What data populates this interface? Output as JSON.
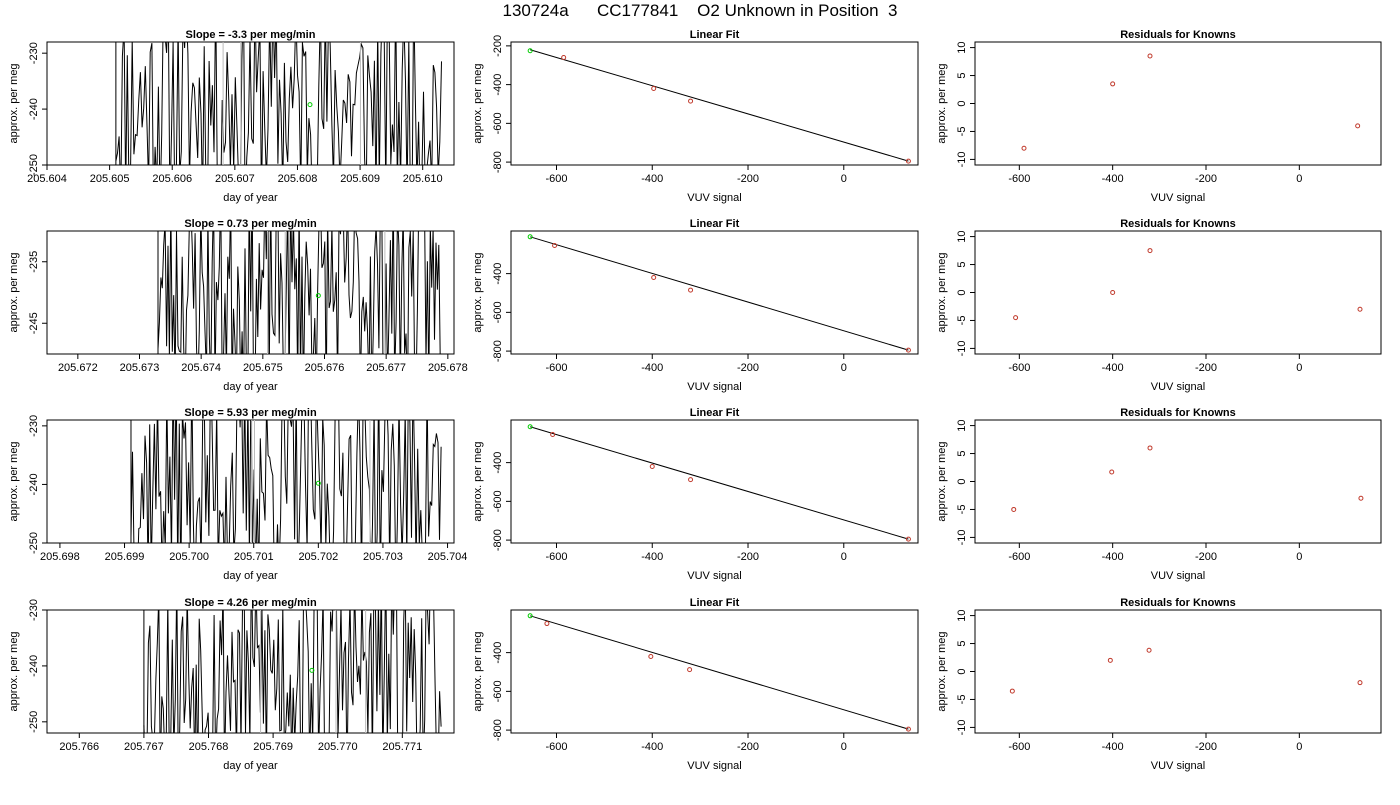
{
  "page_title": "130724a      CC177841    O2 Unknown in Position  3",
  "colors": {
    "line": "#000000",
    "known_point": "#c0392b",
    "unknown_point": "#00cc00",
    "gap_line": "#bbbbbb"
  },
  "chart_data": [
    {
      "type": "line",
      "title": "Slope =  -3.3  per meg/min",
      "xlabel": "day of year",
      "ylabel": "approx. per meg",
      "xlim": [
        205.604,
        205.6105
      ],
      "ylim": [
        -250,
        -228
      ],
      "x_ticks": [
        "205.604",
        "205.605",
        "205.606",
        "205.607",
        "205.608",
        "205.609",
        "205.610"
      ],
      "y_ticks": [
        "-230",
        "-240",
        "-250"
      ],
      "series": [
        {
          "x_start": 205.6051,
          "x_end": 205.6103,
          "y_min": -250,
          "y_max": -228,
          "n_points": 200,
          "seed": 11
        }
      ],
      "marker": {
        "x": 205.6082,
        "y": -239.2
      },
      "grid": false
    },
    {
      "type": "scatter",
      "title": "Linear Fit",
      "xlabel": "VUV signal",
      "ylabel": "approx. per meg",
      "xlim": [
        -695,
        155
      ],
      "ylim": [
        -815,
        -180
      ],
      "x_ticks": [
        "-600",
        "-400",
        "-200",
        "0"
      ],
      "y_ticks": [
        "-200",
        "-400",
        "-600",
        "-800"
      ],
      "known_points": [
        [
          -585,
          -260
        ],
        [
          -397,
          -420
        ],
        [
          -320,
          -485
        ],
        [
          135,
          -795
        ]
      ],
      "unknown_point": [
        -655,
        -225
      ],
      "fit_line": [
        [
          -655,
          -220
        ],
        [
          135,
          -795
        ]
      ],
      "grid": false
    },
    {
      "type": "scatter",
      "title": "Residuals for Knowns",
      "xlabel": "VUV signal",
      "ylabel": "approx. per meg",
      "xlim": [
        -695,
        175
      ],
      "ylim": [
        -11,
        11
      ],
      "x_ticks": [
        "-600",
        "-400",
        "-200",
        "0"
      ],
      "y_ticks": [
        "-10",
        "-5",
        "0",
        "5",
        "10"
      ],
      "points": [
        [
          -590,
          -8
        ],
        [
          -400,
          3.5
        ],
        [
          -320,
          8.5
        ],
        [
          125,
          -4
        ]
      ],
      "grid": false
    },
    {
      "type": "line",
      "title": "Slope =  0.73  per meg/min",
      "xlabel": "day of year",
      "ylabel": "approx. per meg",
      "xlim": [
        205.6715,
        205.6781
      ],
      "ylim": [
        -250,
        -230
      ],
      "x_ticks": [
        "205.672",
        "205.673",
        "205.674",
        "205.675",
        "205.676",
        "205.677",
        "205.678"
      ],
      "y_ticks": [
        "-235",
        "-245"
      ],
      "series": [
        {
          "x_start": 205.6733,
          "x_end": 205.6779,
          "y_min": -250,
          "y_max": -230,
          "n_points": 200,
          "seed": 23
        }
      ],
      "marker": {
        "x": 205.6759,
        "y": -240.5
      },
      "grid": false
    },
    {
      "type": "scatter",
      "title": "Linear Fit",
      "xlabel": "VUV signal",
      "ylabel": "approx. per meg",
      "xlim": [
        -695,
        155
      ],
      "ylim": [
        -815,
        -180
      ],
      "x_ticks": [
        "-600",
        "-400",
        "-200",
        "0"
      ],
      "y_ticks": [
        "-400",
        "-600",
        "-800"
      ],
      "known_points": [
        [
          -604,
          -255
        ],
        [
          -397,
          -420
        ],
        [
          -320,
          -485
        ],
        [
          135,
          -795
        ]
      ],
      "unknown_point": [
        -655,
        -210
      ],
      "fit_line": [
        [
          -655,
          -210
        ],
        [
          135,
          -795
        ]
      ],
      "grid": false
    },
    {
      "type": "scatter",
      "title": "Residuals for Knowns",
      "xlabel": "VUV signal",
      "ylabel": "approx. per meg",
      "xlim": [
        -695,
        175
      ],
      "ylim": [
        -11,
        11
      ],
      "x_ticks": [
        "-600",
        "-400",
        "-200",
        "0"
      ],
      "y_ticks": [
        "-10",
        "-5",
        "0",
        "5",
        "10"
      ],
      "points": [
        [
          -608,
          -4.5
        ],
        [
          -400,
          0
        ],
        [
          -320,
          7.5
        ],
        [
          130,
          -3
        ]
      ],
      "grid": false
    },
    {
      "type": "line",
      "title": "Slope =  5.93  per meg/min",
      "xlabel": "day of year",
      "ylabel": "approx. per meg",
      "xlim": [
        205.6978,
        205.7041
      ],
      "ylim": [
        -250,
        -229
      ],
      "x_ticks": [
        "205.698",
        "205.699",
        "205.700",
        "205.701",
        "205.702",
        "205.703",
        "205.704"
      ],
      "y_ticks": [
        "-230",
        "-240",
        "-250"
      ],
      "series": [
        {
          "x_start": 205.6991,
          "x_end": 205.7039,
          "y_min": -250,
          "y_max": -229,
          "n_points": 200,
          "seed": 37
        }
      ],
      "marker": {
        "x": 205.702,
        "y": -239.8
      },
      "grid": false
    },
    {
      "type": "scatter",
      "title": "Linear Fit",
      "xlabel": "VUV signal",
      "ylabel": "approx. per meg",
      "xlim": [
        -695,
        155
      ],
      "ylim": [
        -815,
        -180
      ],
      "x_ticks": [
        "-600",
        "-400",
        "-200",
        "0"
      ],
      "y_ticks": [
        "-400",
        "-600",
        "-800"
      ],
      "known_points": [
        [
          -608,
          -255
        ],
        [
          -400,
          -420
        ],
        [
          -320,
          -488
        ],
        [
          135,
          -795
        ]
      ],
      "unknown_point": [
        -655,
        -215
      ],
      "fit_line": [
        [
          -655,
          -215
        ],
        [
          135,
          -795
        ]
      ],
      "grid": false
    },
    {
      "type": "scatter",
      "title": "Residuals for Knowns",
      "xlabel": "VUV signal",
      "ylabel": "approx. per meg",
      "xlim": [
        -695,
        175
      ],
      "ylim": [
        -11,
        11
      ],
      "x_ticks": [
        "-600",
        "-400",
        "-200",
        "0"
      ],
      "y_ticks": [
        "-10",
        "-5",
        "0",
        "5",
        "10"
      ],
      "points": [
        [
          -612,
          -5
        ],
        [
          -402,
          1.7
        ],
        [
          -320,
          6
        ],
        [
          132,
          -3
        ]
      ],
      "grid": false
    },
    {
      "type": "line",
      "title": "Slope =  4.26  per meg/min",
      "xlabel": "day of year",
      "ylabel": "approx. per meg",
      "xlim": [
        205.7655,
        205.7718
      ],
      "ylim": [
        -252,
        -230
      ],
      "x_ticks": [
        "205.766",
        "205.767",
        "205.768",
        "205.769",
        "205.770",
        "205.771"
      ],
      "y_ticks": [
        "-230",
        "-240",
        "-250"
      ],
      "series": [
        {
          "x_start": 205.767,
          "x_end": 205.7716,
          "y_min": -252,
          "y_max": -230,
          "n_points": 200,
          "seed": 53
        }
      ],
      "marker": {
        "x": 205.7696,
        "y": -240.8
      },
      "grid": false
    },
    {
      "type": "scatter",
      "title": "Linear Fit",
      "xlabel": "VUV signal",
      "ylabel": "approx. per meg",
      "xlim": [
        -695,
        155
      ],
      "ylim": [
        -815,
        -180
      ],
      "x_ticks": [
        "-600",
        "-400",
        "-200",
        "0"
      ],
      "y_ticks": [
        "-400",
        "-600",
        "-800"
      ],
      "known_points": [
        [
          -620,
          -250
        ],
        [
          -403,
          -420
        ],
        [
          -322,
          -488
        ],
        [
          135,
          -795
        ]
      ],
      "unknown_point": [
        -655,
        -210
      ],
      "fit_line": [
        [
          -655,
          -210
        ],
        [
          135,
          -795
        ]
      ],
      "grid": false
    },
    {
      "type": "scatter",
      "title": "Residuals for Knowns",
      "xlabel": "VUV signal",
      "ylabel": "approx. per meg",
      "xlim": [
        -695,
        175
      ],
      "ylim": [
        -11,
        11
      ],
      "x_ticks": [
        "-600",
        "-400",
        "-200",
        "0"
      ],
      "y_ticks": [
        "-10",
        "-5",
        "0",
        "5",
        "10"
      ],
      "points": [
        [
          -615,
          -3.5
        ],
        [
          -405,
          2
        ],
        [
          -322,
          3.8
        ],
        [
          130,
          -2
        ]
      ],
      "grid": false
    }
  ]
}
